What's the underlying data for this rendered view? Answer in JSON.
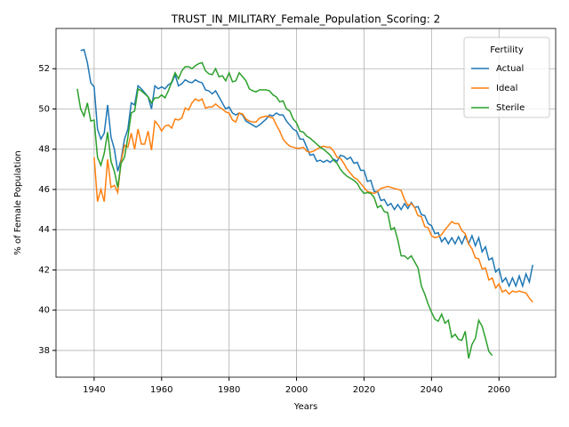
{
  "chart_data": {
    "type": "line",
    "title": "TRUST_IN_MILITARY_Female_Population_Scoring: 2",
    "xlabel": "Years",
    "ylabel": "% of Female Population",
    "legend_title": "Fertility",
    "legend": "upper right",
    "grid": true,
    "xlim": [
      1928.7,
      2076.8
    ],
    "ylim": [
      36.67,
      54.0
    ],
    "xticks": [
      1940,
      1960,
      1980,
      2000,
      2020,
      2040,
      2060
    ],
    "yticks": [
      38,
      40,
      42,
      44,
      46,
      48,
      50,
      52
    ],
    "x": [
      1935,
      1936,
      1937,
      1938,
      1939,
      1940,
      1941,
      1942,
      1943,
      1944,
      1945,
      1946,
      1947,
      1948,
      1949,
      1950,
      1951,
      1952,
      1953,
      1954,
      1955,
      1956,
      1957,
      1958,
      1959,
      1960,
      1961,
      1962,
      1963,
      1964,
      1965,
      1966,
      1967,
      1968,
      1969,
      1970,
      1971,
      1972,
      1973,
      1974,
      1975,
      1976,
      1977,
      1978,
      1979,
      1980,
      1981,
      1982,
      1983,
      1984,
      1985,
      1986,
      1987,
      1988,
      1989,
      1990,
      1991,
      1992,
      1993,
      1994,
      1995,
      1996,
      1997,
      1998,
      1999,
      2000,
      2001,
      2002,
      2003,
      2004,
      2005,
      2006,
      2007,
      2008,
      2009,
      2010,
      2011,
      2012,
      2013,
      2014,
      2015,
      2016,
      2017,
      2018,
      2019,
      2020,
      2021,
      2022,
      2023,
      2024,
      2025,
      2026,
      2027,
      2028,
      2029,
      2030,
      2031,
      2032,
      2033,
      2034,
      2035,
      2036,
      2037,
      2038,
      2039,
      2040,
      2041,
      2042,
      2043,
      2044,
      2045,
      2046,
      2047,
      2048,
      2049,
      2050,
      2051,
      2052,
      2053,
      2054,
      2055,
      2056,
      2057,
      2058,
      2059,
      2060,
      2061,
      2062,
      2063,
      2064,
      2065,
      2066,
      2067,
      2068,
      2069,
      2070
    ],
    "series": [
      {
        "name": "Actual",
        "color": "#1f77b4",
        "values": [
          null,
          52.9,
          52.95,
          52.3,
          51.3,
          51.1,
          49.0,
          48.5,
          48.8,
          50.2,
          48.6,
          48.0,
          46.9,
          47.5,
          48.5,
          49.0,
          50.3,
          50.2,
          51.15,
          51.0,
          50.8,
          50.6,
          50.0,
          51.15,
          51.0,
          51.1,
          51.0,
          51.2,
          51.3,
          51.7,
          51.15,
          51.25,
          51.45,
          51.35,
          51.3,
          51.45,
          51.35,
          51.3,
          50.95,
          50.9,
          50.75,
          50.9,
          50.6,
          50.3,
          50.0,
          50.1,
          49.8,
          49.7,
          49.8,
          49.7,
          49.4,
          49.3,
          49.2,
          49.1,
          49.2,
          49.35,
          49.5,
          49.7,
          49.65,
          49.8,
          49.7,
          49.7,
          49.4,
          49.2,
          49.0,
          48.9,
          48.5,
          48.5,
          48.1,
          47.7,
          47.75,
          47.4,
          47.45,
          47.35,
          47.45,
          47.35,
          47.5,
          47.4,
          47.7,
          47.65,
          47.5,
          47.6,
          47.3,
          47.35,
          46.95,
          46.95,
          46.4,
          46.45,
          45.9,
          45.9,
          45.45,
          45.5,
          45.2,
          45.3,
          45.0,
          45.25,
          45.0,
          45.3,
          45.05,
          45.35,
          45.1,
          45.15,
          44.75,
          44.7,
          44.3,
          44.2,
          43.8,
          43.85,
          43.4,
          43.6,
          43.3,
          43.6,
          43.3,
          43.65,
          43.3,
          43.7,
          43.3,
          43.7,
          43.2,
          43.6,
          42.9,
          43.15,
          42.5,
          42.6,
          41.9,
          42.05,
          41.4,
          41.6,
          41.2,
          41.6,
          41.2,
          41.7,
          41.2,
          41.8,
          41.4,
          42.25
        ]
      },
      {
        "name": "Ideal",
        "color": "#ff7f0e",
        "values": [
          null,
          null,
          null,
          null,
          null,
          47.6,
          45.4,
          46.0,
          45.4,
          47.5,
          46.1,
          46.2,
          45.85,
          47.4,
          48.2,
          48.1,
          48.8,
          48.0,
          49.0,
          48.25,
          48.25,
          48.9,
          47.95,
          49.4,
          49.2,
          48.9,
          49.15,
          49.2,
          49.05,
          49.5,
          49.45,
          49.55,
          50.05,
          49.95,
          50.3,
          50.5,
          50.4,
          50.5,
          50.05,
          50.1,
          50.1,
          50.25,
          50.1,
          50.0,
          49.85,
          49.8,
          49.45,
          49.35,
          49.8,
          49.75,
          49.5,
          49.4,
          49.35,
          49.35,
          49.55,
          49.6,
          49.65,
          49.6,
          49.55,
          49.2,
          48.9,
          48.5,
          48.3,
          48.15,
          48.1,
          48.05,
          48.05,
          48.1,
          47.9,
          47.85,
          47.9,
          48.0,
          48.1,
          48.15,
          48.1,
          48.1,
          47.9,
          47.6,
          47.55,
          47.3,
          47.0,
          46.8,
          46.6,
          46.5,
          46.3,
          46.1,
          45.9,
          45.85,
          45.8,
          45.9,
          46.05,
          46.1,
          46.15,
          46.1,
          46.05,
          46.0,
          45.95,
          45.5,
          45.2,
          45.3,
          45.1,
          44.7,
          44.65,
          44.15,
          44.1,
          43.7,
          43.6,
          43.65,
          43.75,
          44.0,
          44.2,
          44.4,
          44.3,
          44.3,
          43.95,
          43.8,
          43.3,
          43.05,
          42.6,
          42.55,
          42.05,
          42.1,
          41.5,
          41.6,
          41.1,
          41.3,
          40.9,
          41.0,
          40.8,
          40.95,
          40.9,
          40.95,
          40.9,
          40.85,
          40.6,
          40.4
        ]
      },
      {
        "name": "Sterile",
        "color": "#2ca02c",
        "values": [
          51.0,
          50.0,
          49.65,
          50.3,
          49.4,
          49.45,
          47.6,
          47.2,
          47.8,
          48.85,
          47.4,
          46.9,
          46.1,
          47.3,
          47.6,
          48.6,
          49.8,
          49.9,
          51.0,
          50.9,
          50.75,
          50.6,
          50.3,
          50.55,
          50.55,
          50.7,
          50.55,
          50.9,
          51.35,
          51.8,
          51.5,
          51.9,
          52.1,
          52.1,
          52.0,
          52.15,
          52.25,
          52.3,
          51.9,
          51.75,
          51.7,
          52.0,
          51.6,
          51.65,
          51.4,
          51.8,
          51.35,
          51.4,
          51.8,
          51.6,
          51.4,
          51.0,
          50.9,
          50.85,
          50.95,
          50.95,
          50.95,
          50.9,
          50.7,
          50.6,
          50.35,
          50.4,
          50.0,
          49.9,
          49.5,
          49.3,
          48.9,
          48.85,
          48.65,
          48.55,
          48.4,
          48.25,
          48.1,
          48.0,
          47.85,
          47.7,
          47.45,
          47.3,
          47.0,
          46.8,
          46.65,
          46.55,
          46.45,
          46.3,
          46.0,
          45.8,
          45.85,
          45.8,
          45.6,
          45.1,
          45.2,
          44.9,
          44.85,
          44.0,
          44.1,
          43.5,
          42.7,
          42.7,
          42.55,
          42.7,
          42.4,
          42.1,
          41.2,
          40.8,
          40.3,
          39.9,
          39.55,
          39.45,
          39.8,
          39.35,
          39.5,
          38.65,
          38.8,
          38.55,
          38.5,
          38.95,
          37.6,
          38.3,
          38.6,
          39.5,
          39.2,
          38.6,
          37.95,
          37.75,
          null,
          null,
          null,
          null,
          null,
          null,
          null,
          null,
          null,
          null,
          null,
          null
        ]
      }
    ]
  }
}
